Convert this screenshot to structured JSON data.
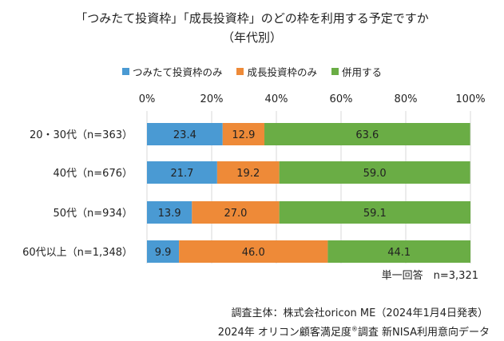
{
  "title_line1": "「つみたて投資枠」「成長投資枠」のどの枠を利用する予定ですか",
  "title_line2": "（年代別）",
  "legend": [
    {
      "label": "つみたて投資枠のみ",
      "color": "#4a9ad3"
    },
    {
      "label": "成長投資枠のみ",
      "color": "#ee8a38"
    },
    {
      "label": "併用する",
      "color": "#6aad45"
    }
  ],
  "chart_data": {
    "type": "bar",
    "orientation": "horizontal",
    "stacked": true,
    "percent_stacked": true,
    "categories": [
      "20・30代（n=363）",
      "40代（n=676）",
      "50代（n=934）",
      "60代以上（n=1,348）"
    ],
    "series": [
      {
        "name": "つみたて投資枠のみ",
        "values": [
          23.4,
          21.7,
          13.9,
          9.9
        ],
        "color": "#4a9ad3"
      },
      {
        "name": "成長投資枠のみ",
        "values": [
          12.9,
          19.2,
          27.0,
          46.0
        ],
        "color": "#ee8a38"
      },
      {
        "name": "併用する",
        "values": [
          63.6,
          59.0,
          59.1,
          44.1
        ],
        "color": "#6aad45"
      }
    ],
    "xlim": [
      0,
      100
    ],
    "xticks": [
      "0%",
      "20%",
      "40%",
      "60%",
      "80%",
      "100%"
    ],
    "grid": true,
    "legend_position": "top"
  },
  "notes": {
    "n_total": "単一回答　n=3,321",
    "source": "調査主体：株式会社oricon ME（2024年1月4日発表）",
    "survey_pre": "2024年 オリコン顧客満足度",
    "survey_mark": "®",
    "survey_post": "調査 新NISA利用意向データ"
  }
}
